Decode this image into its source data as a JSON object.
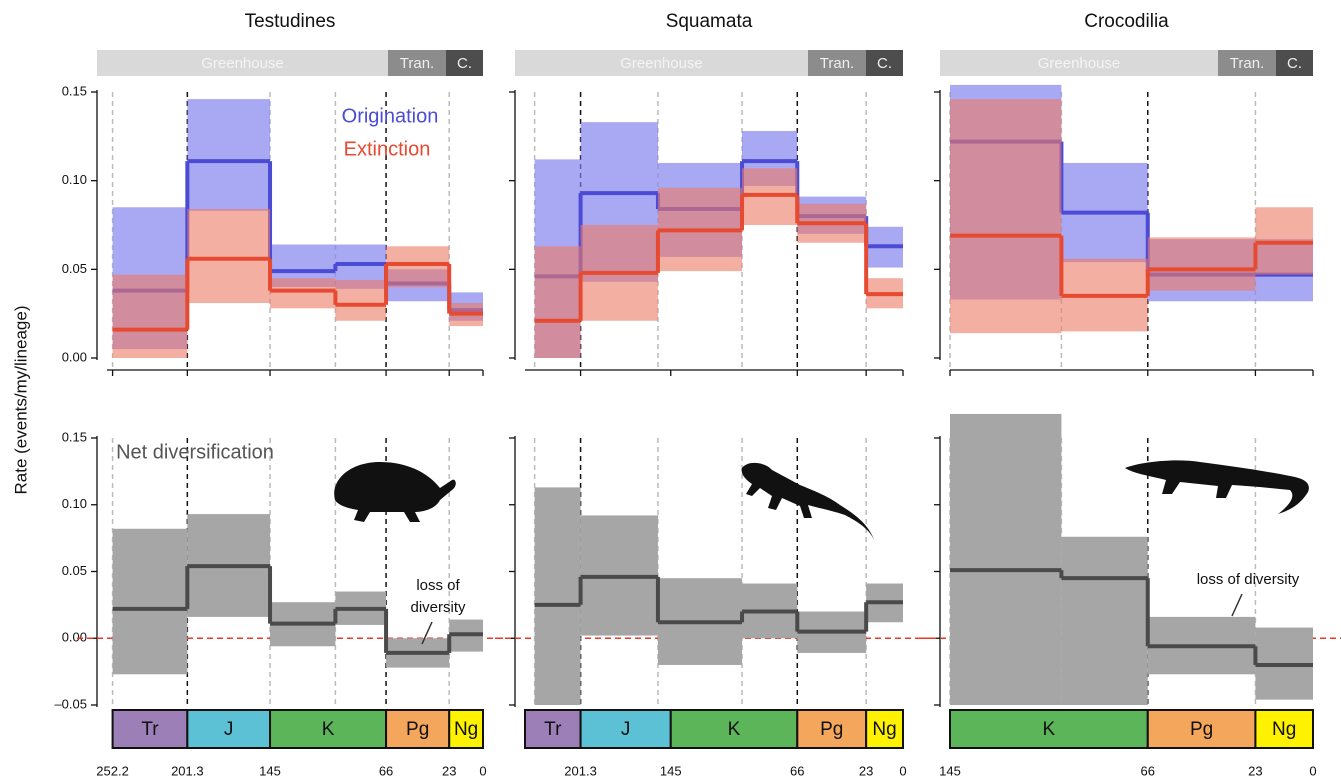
{
  "y_axis_label": "Rate (events/my/lineage)",
  "climate": [
    {
      "name": "Greenhouse",
      "color": "#d9d9d9"
    },
    {
      "name": "Tran.",
      "color": "#8c8c8c"
    },
    {
      "name": "C.",
      "color": "#4d4d4d"
    }
  ],
  "periods": [
    {
      "name": "Tr",
      "start": 252.2,
      "end": 201.3,
      "color": "#9b7fb6"
    },
    {
      "name": "J",
      "start": 201.3,
      "end": 145,
      "color": "#5cc1d4"
    },
    {
      "name": "K",
      "start": 145,
      "end": 66,
      "color": "#5db55a"
    },
    {
      "name": "Pg",
      "start": 66,
      "end": 23,
      "color": "#f4a65c"
    },
    {
      "name": "Ng",
      "start": 23,
      "end": 0,
      "color": "#fff200"
    }
  ],
  "rate_ylim": [
    0,
    0.15
  ],
  "rate_yticks": [
    {
      "value": 0,
      "label": "0.00"
    },
    {
      "value": 0.05,
      "label": "0.05"
    },
    {
      "value": 0.1,
      "label": "0.10"
    },
    {
      "value": 0.15,
      "label": "0.15"
    }
  ],
  "net_ylim": [
    -0.05,
    0.15
  ],
  "net_yticks": [
    {
      "value": -0.05,
      "label": "–0.05"
    },
    {
      "value": 0,
      "label": "0.00"
    },
    {
      "value": 0.05,
      "label": "0.05"
    },
    {
      "value": 0.1,
      "label": "0.10"
    },
    {
      "value": 0.15,
      "label": "0.15"
    }
  ],
  "chart_data": [
    {
      "type": "step",
      "title": "Testudines",
      "xlim": [
        256,
        0
      ],
      "xticks": [
        252.2,
        201.3,
        145,
        66,
        23,
        0
      ],
      "edges": [
        252.2,
        201.3,
        145,
        100.5,
        66,
        23,
        0
      ],
      "series": [
        {
          "name": "Origination",
          "color": "#4b4bd6",
          "band_color": "#8484ee",
          "values": [
            0.038,
            0.111,
            0.049,
            0.053,
            0.042,
            0.027
          ],
          "lower": [
            0.005,
            0.083,
            0.04,
            0.039,
            0.032,
            0.021
          ],
          "upper": [
            0.085,
            0.146,
            0.064,
            0.064,
            0.05,
            0.037
          ]
        },
        {
          "name": "Extinction",
          "color": "#e64a30",
          "band_color": "#ec7a66",
          "values": [
            0.016,
            0.056,
            0.038,
            0.03,
            0.053,
            0.025
          ],
          "lower": [
            0,
            0.031,
            0.028,
            0.021,
            0.04,
            0.018
          ],
          "upper": [
            0.047,
            0.084,
            0.045,
            0.044,
            0.063,
            0.031
          ]
        }
      ],
      "net": {
        "name": "Net diversification",
        "color": "#4a4a4a",
        "band_color": "#a6a6a6",
        "values": [
          0.022,
          0.054,
          0.011,
          0.022,
          -0.011,
          0.003
        ],
        "lower": [
          -0.027,
          0.016,
          -0.006,
          0.01,
          -0.022,
          -0.01
        ],
        "upper": [
          0.082,
          0.093,
          0.027,
          0.035,
          0,
          0.014
        ]
      },
      "annotation": [
        "loss of",
        "diversity"
      ]
    },
    {
      "type": "step",
      "title": "Squamata",
      "xlim": [
        236,
        0
      ],
      "xticks": [
        201.3,
        145,
        66,
        23,
        0
      ],
      "edges": [
        230,
        201.3,
        153,
        100.5,
        66,
        23,
        0
      ],
      "series": [
        {
          "color": "#4b4bd6",
          "band_color": "#8484ee",
          "values": [
            0.046,
            0.093,
            0.084,
            0.111,
            0.08,
            0.063
          ],
          "lower": [
            0,
            0.043,
            0.057,
            0.097,
            0.07,
            0.051
          ],
          "upper": [
            0.112,
            0.133,
            0.11,
            0.128,
            0.091,
            0.074
          ]
        },
        {
          "color": "#e64a30",
          "band_color": "#ec7a66",
          "values": [
            0.021,
            0.048,
            0.072,
            0.092,
            0.076,
            0.036
          ],
          "lower": [
            0,
            0.021,
            0.049,
            0.075,
            0.065,
            0.028
          ],
          "upper": [
            0.063,
            0.075,
            0.096,
            0.107,
            0.087,
            0.045
          ]
        }
      ],
      "net": {
        "color": "#4a4a4a",
        "band_color": "#a6a6a6",
        "values": [
          0.025,
          0.046,
          0.012,
          0.02,
          0.005,
          0.027
        ],
        "lower": [
          -0.05,
          0.002,
          -0.02,
          0,
          -0.011,
          0.012
        ],
        "upper": [
          0.113,
          0.092,
          0.045,
          0.041,
          0.02,
          0.041
        ]
      }
    },
    {
      "type": "step",
      "title": "Crocodilia",
      "xlim": [
        145,
        0
      ],
      "xticks": [
        145,
        66,
        23,
        0
      ],
      "edges": [
        145,
        100.5,
        66,
        23,
        0
      ],
      "series": [
        {
          "color": "#4b4bd6",
          "band_color": "#8484ee",
          "values": [
            0.122,
            0.082,
            0.047,
            0.047
          ],
          "lower": [
            0.033,
            0.054,
            0.032,
            0.032
          ],
          "upper": [
            0.154,
            0.11,
            0.067,
            0.067
          ]
        },
        {
          "color": "#e64a30",
          "band_color": "#ec7a66",
          "values": [
            0.069,
            0.035,
            0.05,
            0.065
          ],
          "lower": [
            0.014,
            0.015,
            0.038,
            0.047
          ],
          "upper": [
            0.146,
            0.056,
            0.068,
            0.085
          ]
        }
      ],
      "net": {
        "color": "#4a4a4a",
        "band_color": "#a6a6a6",
        "values": [
          0.051,
          0.045,
          -0.006,
          -0.02
        ],
        "lower": [
          -0.05,
          -0.05,
          -0.027,
          -0.046
        ],
        "upper": [
          0.168,
          0.076,
          0.016,
          0.008
        ]
      },
      "annotation": [
        "loss of diversity"
      ]
    }
  ]
}
